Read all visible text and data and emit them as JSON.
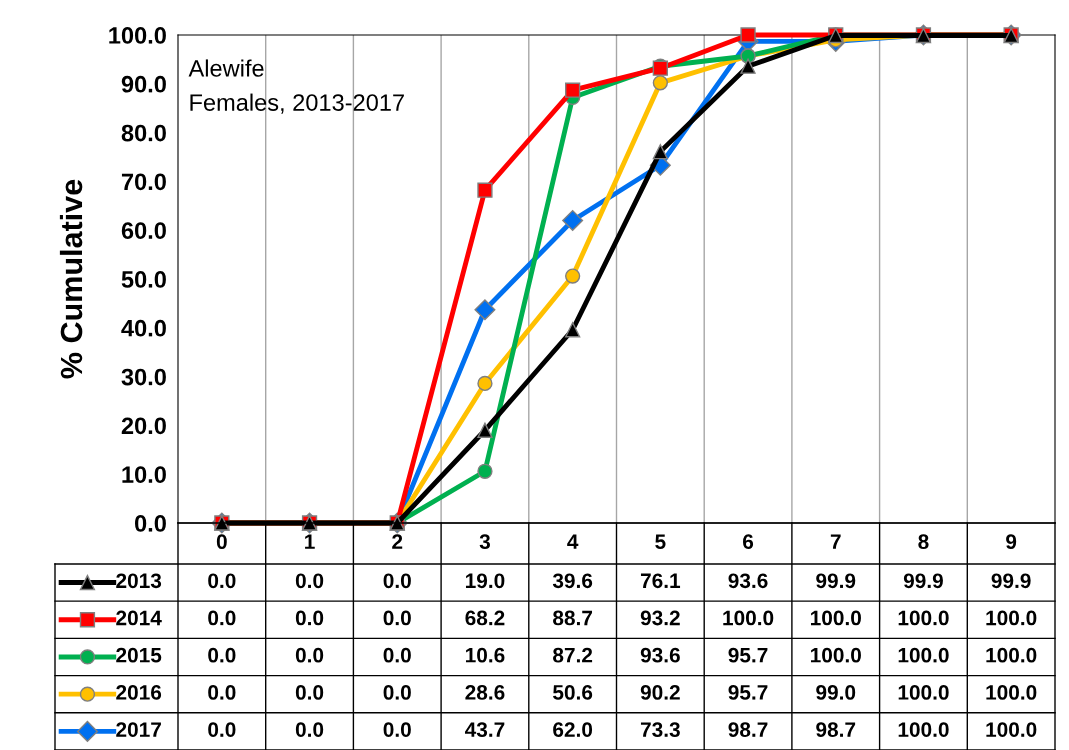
{
  "chart_data": {
    "type": "line",
    "title": "Alewife",
    "subtitle": "Females, 2013-2017",
    "ylabel": "% Cumulative",
    "categories": [
      "0",
      "1",
      "2",
      "3",
      "4",
      "5",
      "6",
      "7",
      "8",
      "9"
    ],
    "series": [
      {
        "name": "2013",
        "color": "#000000",
        "marker": "triangle",
        "values": [
          0.0,
          0.0,
          0.0,
          19.0,
          39.6,
          76.1,
          93.6,
          99.9,
          99.9,
          99.9
        ],
        "value_labels": [
          "0.0",
          "0.0",
          "0.0",
          "19.0",
          "39.6",
          "76.1",
          "93.6",
          "99.9",
          "99.9",
          "99.9"
        ]
      },
      {
        "name": "2014",
        "color": "#ff0000",
        "marker": "square",
        "values": [
          0.0,
          0.0,
          0.0,
          68.2,
          88.7,
          93.2,
          100.0,
          100.0,
          100.0,
          100.0
        ],
        "value_labels": [
          "0.0",
          "0.0",
          "0.0",
          "68.2",
          "88.7",
          "93.2",
          "100.0",
          "100.0",
          "100.0",
          "100.0"
        ]
      },
      {
        "name": "2015",
        "color": "#00b050",
        "marker": "circle",
        "values": [
          0.0,
          0.0,
          0.0,
          10.6,
          87.2,
          93.6,
          95.7,
          100.0,
          100.0,
          100.0
        ],
        "value_labels": [
          "0.0",
          "0.0",
          "0.0",
          "10.6",
          "87.2",
          "93.6",
          "95.7",
          "100.0",
          "100.0",
          "100.0"
        ]
      },
      {
        "name": "2016",
        "color": "#ffc000",
        "marker": "circle",
        "values": [
          0.0,
          0.0,
          0.0,
          28.6,
          50.6,
          90.2,
          95.7,
          99.0,
          100.0,
          100.0
        ],
        "value_labels": [
          "0.0",
          "0.0",
          "0.0",
          "28.6",
          "50.6",
          "90.2",
          "95.7",
          "99.0",
          "100.0",
          "100.0"
        ]
      },
      {
        "name": "2017",
        "color": "#0070f0",
        "marker": "diamond",
        "values": [
          0.0,
          0.0,
          0.0,
          43.7,
          62.0,
          73.3,
          98.7,
          98.7,
          100.0,
          100.0
        ],
        "value_labels": [
          "0.0",
          "0.0",
          "0.0",
          "43.7",
          "62.0",
          "73.3",
          "98.7",
          "98.7",
          "100.0",
          "100.0"
        ]
      }
    ],
    "ylim": [
      0,
      100
    ],
    "yticks": [
      {
        "value": 0,
        "label": "0.0"
      },
      {
        "value": 10,
        "label": "10.0"
      },
      {
        "value": 20,
        "label": "20.0"
      },
      {
        "value": 30,
        "label": "30.0"
      },
      {
        "value": 40,
        "label": "40.0"
      },
      {
        "value": 50,
        "label": "50.0"
      },
      {
        "value": 60,
        "label": "60.0"
      },
      {
        "value": 70,
        "label": "70.0"
      },
      {
        "value": 80,
        "label": "80.0"
      },
      {
        "value": 90,
        "label": "90.0"
      },
      {
        "value": 100,
        "label": "100.0"
      }
    ],
    "grid": "x",
    "legend": "bottom",
    "line_style": "solid"
  }
}
